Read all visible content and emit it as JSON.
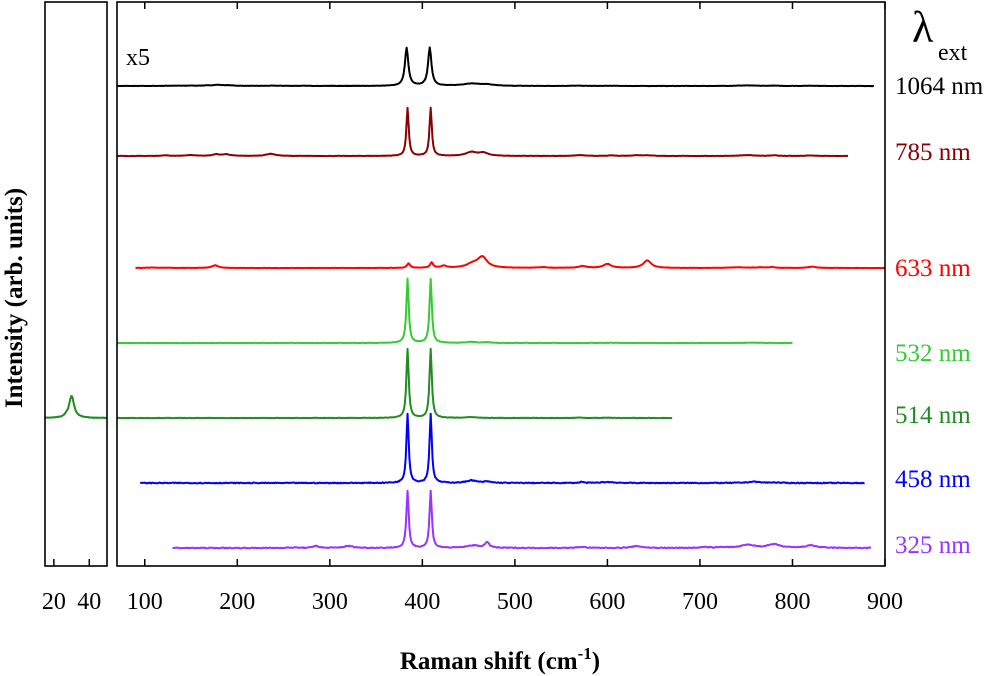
{
  "chart_data": {
    "type": "line",
    "title": "",
    "xlabel": "Raman shift (cm",
    "xlabel_sup": "-1",
    "xlabel_end": ")",
    "ylabel": "Intensity (arb. units)",
    "xlim": [
      70,
      900
    ],
    "xticks": [
      100,
      200,
      300,
      400,
      500,
      600,
      700,
      800,
      900
    ],
    "inset_xlim": [
      15,
      50
    ],
    "inset_xticks": [
      20,
      40
    ],
    "legend_title": "λ",
    "legend_title_sub": "ext",
    "legend_placement": "right",
    "annotation": "x5",
    "grid": false,
    "series": [
      {
        "name": "1064 nm",
        "color": "#000000",
        "offset": 86,
        "segments": [
          [
            70,
            338
          ],
          [
            295,
            888
          ]
        ],
        "peaks": [
          [
            130,
            0.25,
            8
          ],
          [
            150,
            0.3,
            8
          ],
          [
            165,
            0.2,
            6
          ],
          [
            178,
            1.0,
            7
          ],
          [
            190,
            0.55,
            7
          ],
          [
            240,
            0.25,
            12
          ],
          [
            276,
            0.15,
            10
          ],
          [
            383,
            38,
            2.2
          ],
          [
            408,
            38,
            2.2
          ],
          [
            453,
            2.3,
            12
          ],
          [
            470,
            1.2,
            8
          ],
          [
            568,
            0.25,
            10
          ],
          [
            605,
            0.15,
            8
          ],
          [
            750,
            0.55,
            12
          ],
          [
            780,
            0.3,
            6
          ],
          [
            820,
            0.25,
            8
          ]
        ],
        "noise": 0.3
      },
      {
        "name": "785 nm",
        "color": "#8b0000",
        "offset": 156,
        "segments": [
          [
            70,
            860
          ]
        ],
        "peaks": [
          [
            122,
            0.6,
            5
          ],
          [
            150,
            0.8,
            8
          ],
          [
            177,
            1.6,
            4
          ],
          [
            188,
            1.7,
            5
          ],
          [
            236,
            2.2,
            6
          ],
          [
            384,
            48,
            1.5
          ],
          [
            409,
            48,
            1.5
          ],
          [
            453,
            3.8,
            7
          ],
          [
            466,
            3.0,
            6
          ],
          [
            570,
            0.8,
            7
          ],
          [
            605,
            0.5,
            5
          ],
          [
            632,
            0.7,
            7
          ],
          [
            644,
            0.6,
            6
          ],
          [
            752,
            0.8,
            10
          ],
          [
            780,
            0.7,
            4
          ],
          [
            820,
            0.5,
            6
          ]
        ],
        "noise": 0.3
      },
      {
        "name": "633 nm",
        "color": "#ff0000",
        "offset": 268,
        "segments": [
          [
            90,
            900
          ]
        ],
        "peaks": [
          [
            108,
            0.4,
            6
          ],
          [
            125,
            0.3,
            5
          ],
          [
            176,
            2.7,
            4
          ],
          [
            385,
            4.4,
            2
          ],
          [
            410,
            5.3,
            2
          ],
          [
            423,
            2.0,
            4
          ],
          [
            455,
            4.0,
            8
          ],
          [
            465,
            10.3,
            6
          ],
          [
            530,
            0.7,
            6
          ],
          [
            573,
            1.9,
            5
          ],
          [
            600,
            4.0,
            5
          ],
          [
            643,
            7.6,
            5
          ],
          [
            740,
            0.6,
            10
          ],
          [
            765,
            0.6,
            6
          ],
          [
            778,
            1.0,
            3
          ],
          [
            821,
            1.3,
            5
          ]
        ],
        "noise": 0.3
      },
      {
        "name": "532 nm",
        "color": "#33cc33",
        "offset": 343,
        "segments": [
          [
            70,
            800
          ]
        ],
        "peaks": [
          [
            384,
            64,
            1.5
          ],
          [
            409,
            64,
            1.5
          ],
          [
            453,
            1.1,
            6
          ],
          [
            470,
            0.6,
            6
          ],
          [
            602,
            0.3,
            6
          ],
          [
            755,
            0.4,
            10
          ]
        ],
        "noise": 0.4
      },
      {
        "name": "514 nm",
        "color": "#228b22",
        "offset": 418,
        "segments": [
          [
            70,
            670
          ]
        ],
        "peaks": [
          [
            384,
            69,
            1.5
          ],
          [
            409,
            69,
            1.5
          ],
          [
            453,
            0.8,
            7
          ],
          [
            570,
            0.4,
            5
          ],
          [
            600,
            0.3,
            6
          ]
        ],
        "noise": 0.4
      },
      {
        "name": "458 nm",
        "color": "#0000ff",
        "offset": 483,
        "segments": [
          [
            95,
            878
          ]
        ],
        "peaks": [
          [
            384,
            69,
            1.5
          ],
          [
            409,
            69,
            1.5
          ],
          [
            453,
            2.6,
            6
          ],
          [
            470,
            1.3,
            5
          ],
          [
            572,
            1.3,
            2
          ],
          [
            600,
            1.0,
            8
          ],
          [
            758,
            1.3,
            8
          ],
          [
            780,
            0.5,
            5
          ]
        ],
        "noise": 0.9
      },
      {
        "name": "325 nm",
        "color": "#9933ff",
        "offset": 548,
        "segments": [
          [
            130,
            885
          ]
        ],
        "peaks": [
          [
            260,
            0.4,
            8
          ],
          [
            285,
            2.3,
            3
          ],
          [
            320,
            2.0,
            6
          ],
          [
            384,
            57,
            1.5
          ],
          [
            409,
            57,
            1.5
          ],
          [
            455,
            2.5,
            8
          ],
          [
            470,
            5.2,
            3
          ],
          [
            572,
            1.1,
            5
          ],
          [
            632,
            1.8,
            7
          ],
          [
            705,
            0.8,
            5
          ],
          [
            725,
            0.9,
            5
          ],
          [
            752,
            3.0,
            9
          ],
          [
            780,
            3.5,
            8
          ],
          [
            820,
            2.6,
            7
          ]
        ],
        "noise": 0.9
      }
    ],
    "inset_series": {
      "name": "514 nm",
      "color": "#228b22",
      "offset": 418,
      "segments": [
        [
          15,
          50
        ]
      ],
      "peaks": [
        [
          27,
          1.2,
          1
        ],
        [
          30,
          22,
          1.7
        ]
      ],
      "noise": 0.5
    }
  }
}
